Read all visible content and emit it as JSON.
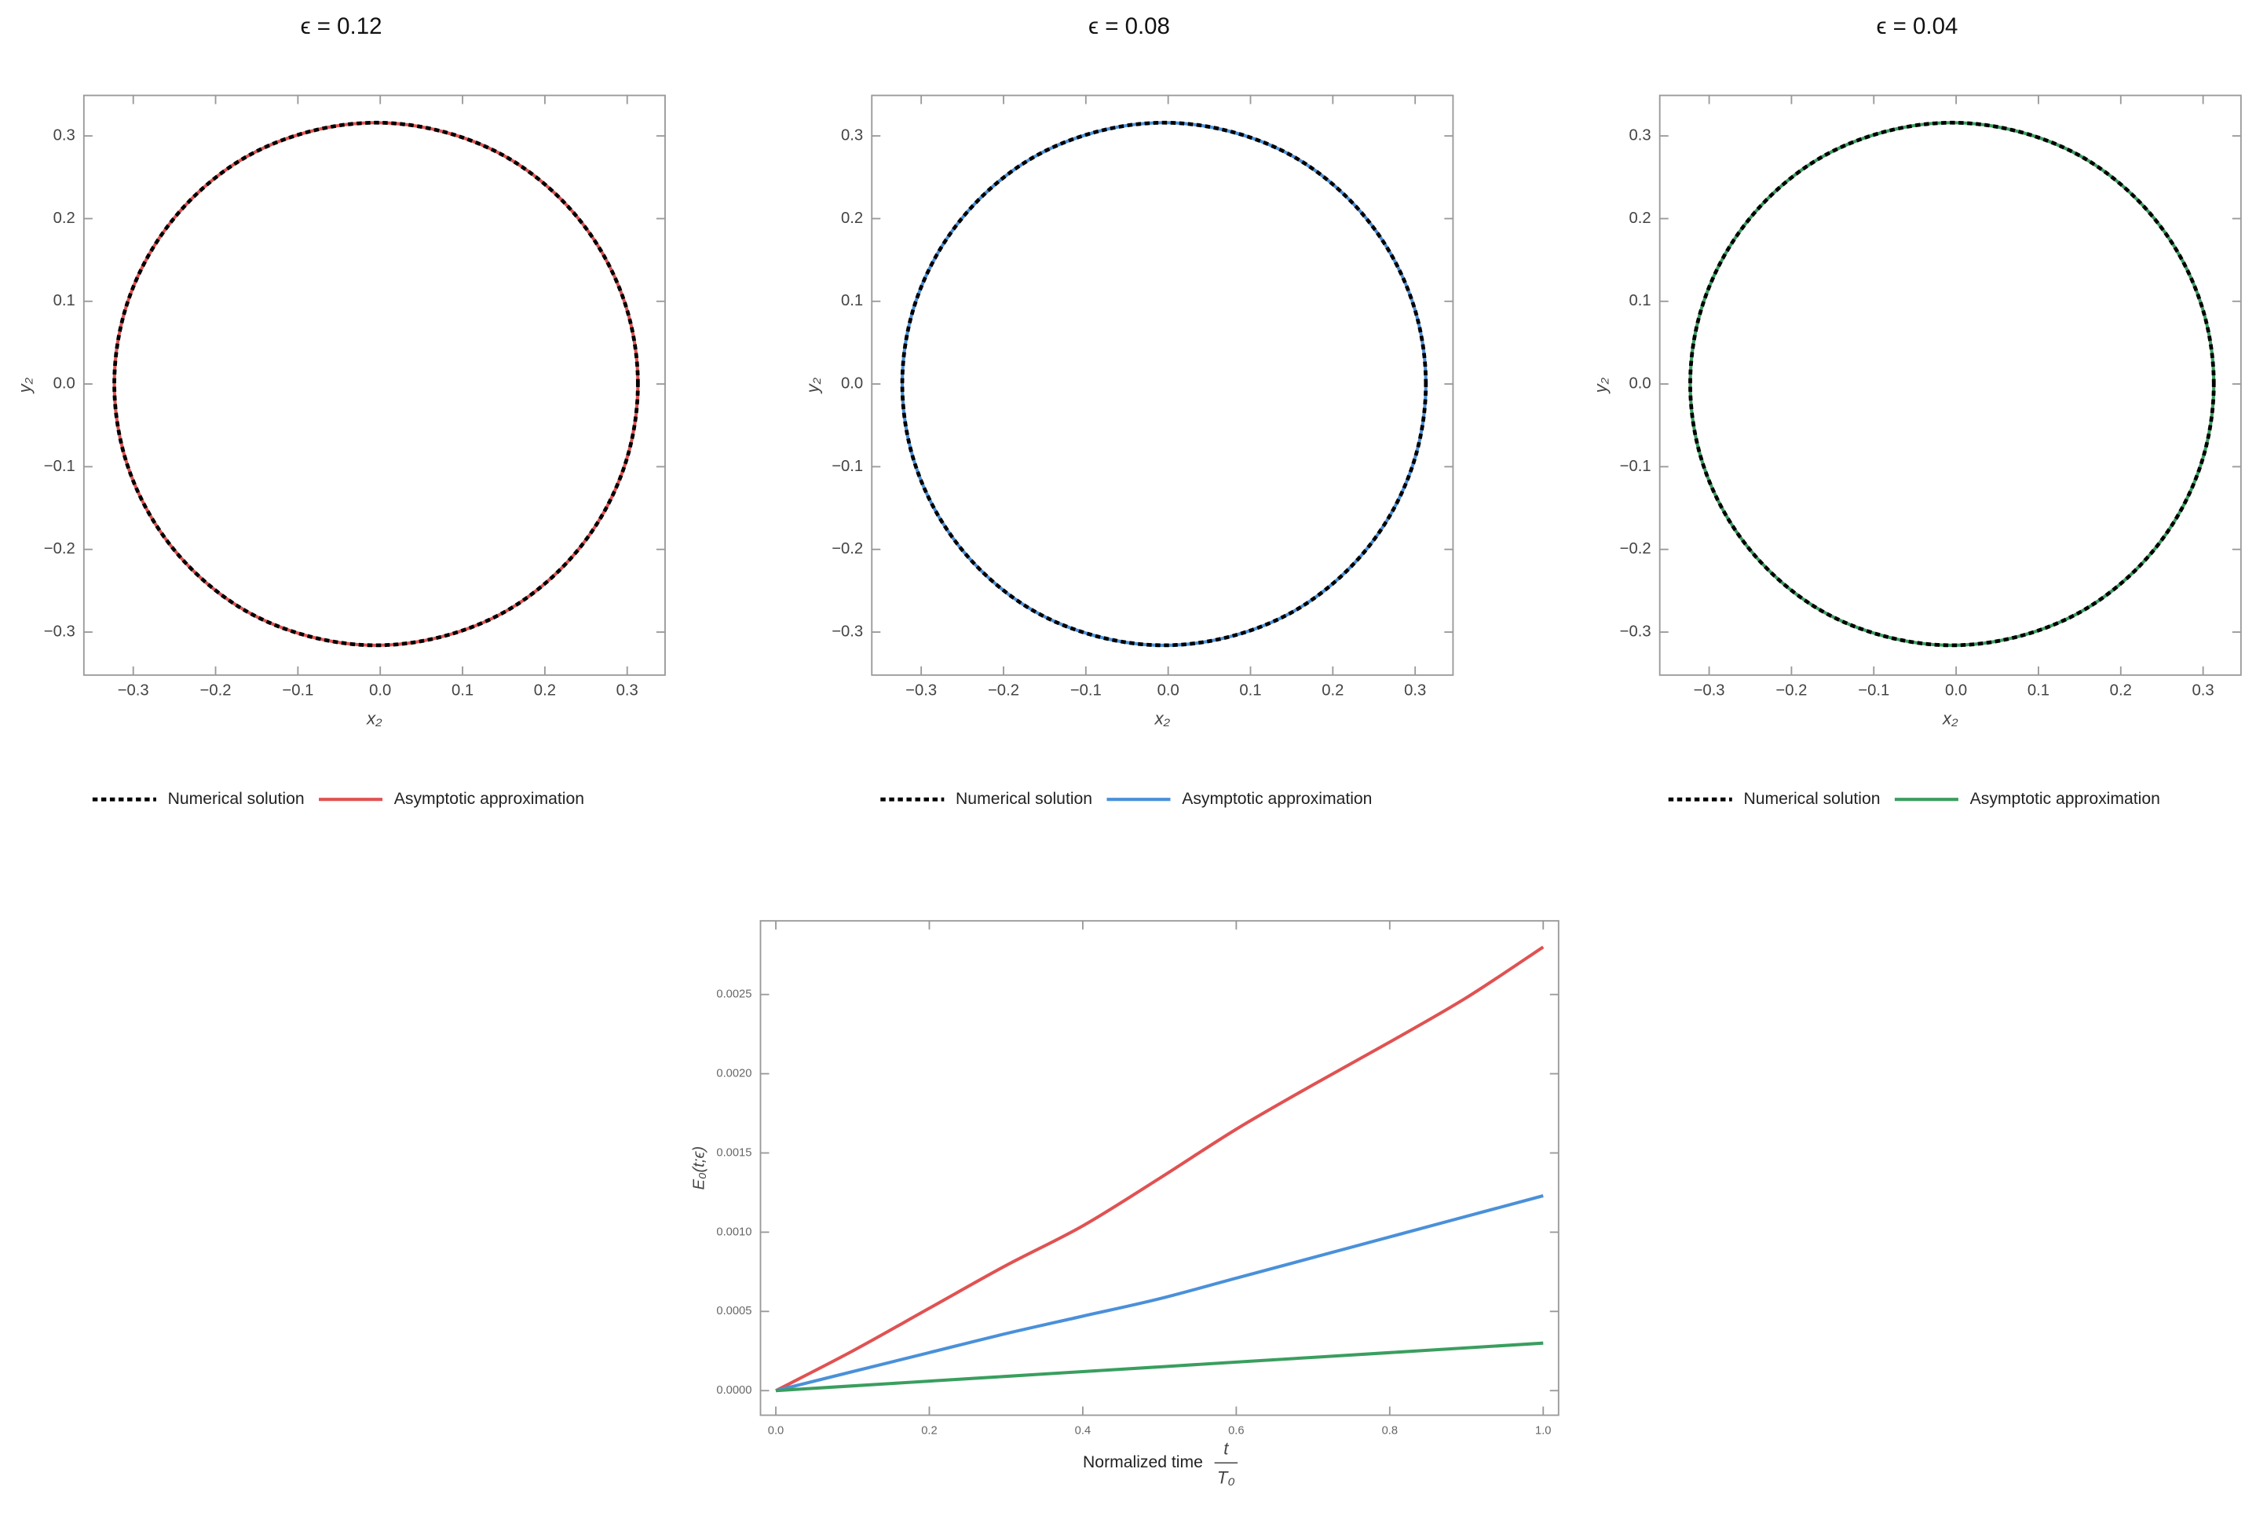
{
  "chart_data": [
    {
      "type": "line",
      "title": "ϵ = 0.12",
      "xlabel": "x₂",
      "ylabel": "y₂",
      "x": [
        0.313,
        0.302,
        0.27,
        0.22,
        0.154,
        0.077,
        -0.005,
        -0.087,
        -0.164,
        -0.23,
        -0.28,
        -0.312,
        -0.323,
        -0.312,
        -0.28,
        -0.23,
        -0.164,
        -0.087,
        -0.005,
        0.077,
        0.154,
        0.22,
        0.27,
        0.302,
        0.313
      ],
      "series": [
        {
          "name": "Numerical solution",
          "color": "#000000",
          "dashed": true,
          "values": [
            0,
            0.082,
            0.158,
            0.223,
            0.274,
            0.305,
            0.316,
            0.305,
            0.274,
            0.223,
            0.158,
            0.082,
            0,
            -0.082,
            -0.158,
            -0.223,
            -0.274,
            -0.305,
            -0.316,
            -0.305,
            -0.274,
            -0.223,
            -0.158,
            -0.082,
            0
          ]
        },
        {
          "name": "Asymptotic approximation",
          "color": "#e05252",
          "values": [
            0,
            0.082,
            0.158,
            0.223,
            0.274,
            0.305,
            0.316,
            0.305,
            0.274,
            0.223,
            0.158,
            0.082,
            0,
            -0.082,
            -0.158,
            -0.223,
            -0.274,
            -0.305,
            -0.316,
            -0.305,
            -0.274,
            -0.223,
            -0.158,
            -0.082,
            0
          ]
        }
      ],
      "xlim": [
        -0.36,
        0.346
      ],
      "ylim": [
        -0.352,
        0.349
      ],
      "xticks": [
        {
          "value": -0.3,
          "label": "−0.3"
        },
        {
          "value": -0.2,
          "label": "−0.2"
        },
        {
          "value": -0.1,
          "label": "−0.1"
        },
        {
          "value": 0,
          "label": "0.0"
        },
        0.1,
        0.2,
        0.3
      ],
      "yticks": [
        {
          "value": -0.3,
          "label": "−0.3"
        },
        {
          "value": -0.2,
          "label": "−0.2"
        },
        {
          "value": -0.1,
          "label": "−0.1"
        },
        {
          "value": 0,
          "label": "0.0"
        },
        0.1,
        0.2,
        0.3
      ]
    },
    {
      "type": "line",
      "title": "ϵ = 0.08",
      "xlabel": "x₂",
      "ylabel": "y₂",
      "x": [
        0.313,
        0.302,
        0.27,
        0.22,
        0.154,
        0.077,
        -0.005,
        -0.087,
        -0.164,
        -0.23,
        -0.28,
        -0.312,
        -0.323,
        -0.312,
        -0.28,
        -0.23,
        -0.164,
        -0.087,
        -0.005,
        0.077,
        0.154,
        0.22,
        0.27,
        0.302,
        0.313
      ],
      "series": [
        {
          "name": "Numerical solution",
          "color": "#000000",
          "dashed": true,
          "values": [
            0,
            0.082,
            0.158,
            0.223,
            0.274,
            0.305,
            0.316,
            0.305,
            0.274,
            0.223,
            0.158,
            0.082,
            0,
            -0.082,
            -0.158,
            -0.223,
            -0.274,
            -0.305,
            -0.316,
            -0.305,
            -0.274,
            -0.223,
            -0.158,
            -0.082,
            0
          ]
        },
        {
          "name": "Asymptotic approximation",
          "color": "#4a90d9",
          "values": [
            0,
            0.082,
            0.158,
            0.223,
            0.274,
            0.305,
            0.316,
            0.305,
            0.274,
            0.223,
            0.158,
            0.082,
            0,
            -0.082,
            -0.158,
            -0.223,
            -0.274,
            -0.305,
            -0.316,
            -0.305,
            -0.274,
            -0.223,
            -0.158,
            -0.082,
            0
          ]
        }
      ],
      "xlim": [
        -0.36,
        0.346
      ],
      "ylim": [
        -0.352,
        0.349
      ],
      "xticks": [
        {
          "value": -0.3,
          "label": "−0.3"
        },
        {
          "value": -0.2,
          "label": "−0.2"
        },
        {
          "value": -0.1,
          "label": "−0.1"
        },
        {
          "value": 0,
          "label": "0.0"
        },
        0.1,
        0.2,
        0.3
      ],
      "yticks": [
        {
          "value": -0.3,
          "label": "−0.3"
        },
        {
          "value": -0.2,
          "label": "−0.2"
        },
        {
          "value": -0.1,
          "label": "−0.1"
        },
        {
          "value": 0,
          "label": "0.0"
        },
        0.1,
        0.2,
        0.3
      ]
    },
    {
      "type": "line",
      "title": "ϵ = 0.04",
      "xlabel": "x₂",
      "ylabel": "y₂",
      "x": [
        0.313,
        0.302,
        0.27,
        0.22,
        0.154,
        0.077,
        -0.005,
        -0.087,
        -0.164,
        -0.23,
        -0.28,
        -0.312,
        -0.323,
        -0.312,
        -0.28,
        -0.23,
        -0.164,
        -0.087,
        -0.005,
        0.077,
        0.154,
        0.22,
        0.27,
        0.302,
        0.313
      ],
      "series": [
        {
          "name": "Numerical solution",
          "color": "#000000",
          "dashed": true,
          "values": [
            0,
            0.082,
            0.158,
            0.223,
            0.274,
            0.305,
            0.316,
            0.305,
            0.274,
            0.223,
            0.158,
            0.082,
            0,
            -0.082,
            -0.158,
            -0.223,
            -0.274,
            -0.305,
            -0.316,
            -0.305,
            -0.274,
            -0.223,
            -0.158,
            -0.082,
            0
          ]
        },
        {
          "name": "Asymptotic approximation",
          "color": "#3a9e5f",
          "values": [
            0,
            0.082,
            0.158,
            0.223,
            0.274,
            0.305,
            0.316,
            0.305,
            0.274,
            0.223,
            0.158,
            0.082,
            0,
            -0.082,
            -0.158,
            -0.223,
            -0.274,
            -0.305,
            -0.316,
            -0.305,
            -0.274,
            -0.223,
            -0.158,
            -0.082,
            0
          ]
        }
      ],
      "xlim": [
        -0.36,
        0.346
      ],
      "ylim": [
        -0.352,
        0.349
      ],
      "xticks": [
        {
          "value": -0.3,
          "label": "−0.3"
        },
        {
          "value": -0.2,
          "label": "−0.2"
        },
        {
          "value": -0.1,
          "label": "−0.1"
        },
        {
          "value": 0,
          "label": "0.0"
        },
        0.1,
        0.2,
        0.3
      ],
      "yticks": [
        {
          "value": -0.3,
          "label": "−0.3"
        },
        {
          "value": -0.2,
          "label": "−0.2"
        },
        {
          "value": -0.1,
          "label": "−0.1"
        },
        {
          "value": 0,
          "label": "0.0"
        },
        0.1,
        0.2,
        0.3
      ]
    },
    {
      "type": "line",
      "ylabel": "E₀(t;ϵ)",
      "xlabel": "Normalized time",
      "xlabel_numerator": "t",
      "xlabel_denominator": "T₀",
      "x": [
        0,
        0.1,
        0.2,
        0.3,
        0.4,
        0.5,
        0.6,
        0.7,
        0.8,
        0.9,
        1.0
      ],
      "series": [
        {
          "color": "#e05252",
          "values": [
            0,
            0.00025,
            0.00052,
            0.00079,
            0.00104,
            0.00134,
            0.00165,
            0.00193,
            0.0022,
            0.00248,
            0.0028
          ]
        },
        {
          "color": "#4a90d9",
          "values": [
            0,
            0.00012,
            0.00024,
            0.00036,
            0.00047,
            0.00058,
            0.00071,
            0.00084,
            0.00097,
            0.0011,
            0.00123
          ]
        },
        {
          "color": "#3a9e5f",
          "values": [
            0,
            3e-05,
            6e-05,
            9e-05,
            0.00012,
            0.00015,
            0.00018,
            0.00021,
            0.00024,
            0.00027,
            0.0003
          ]
        }
      ],
      "xlim": [
        -0.02,
        1.02
      ],
      "ylim": [
        -0.000155,
        0.002965
      ],
      "xticks": [
        {
          "value": 0,
          "label": "0.0"
        },
        0.2,
        0.4,
        0.6,
        0.8,
        {
          "value": 1,
          "label": "1.0"
        }
      ],
      "yticks": [
        {
          "value": 0,
          "label": "0.0000"
        },
        {
          "value": 0.0005,
          "label": "0.0005"
        },
        {
          "value": 0.001,
          "label": "0.0010"
        },
        {
          "value": 0.0015,
          "label": "0.0015"
        },
        {
          "value": 0.002,
          "label": "0.0020"
        },
        {
          "value": 0.0025,
          "label": "0.0025"
        }
      ]
    }
  ]
}
